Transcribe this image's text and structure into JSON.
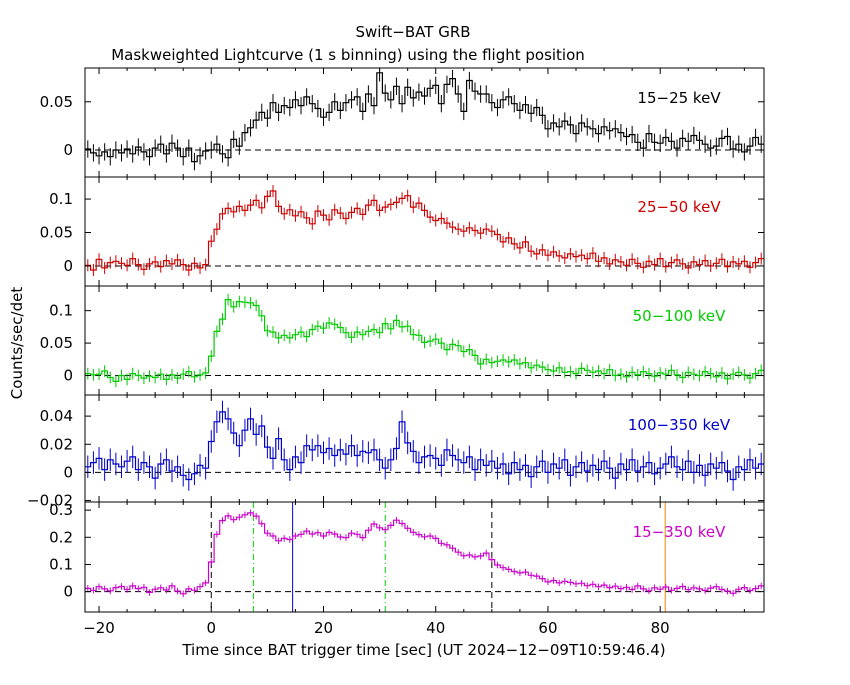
{
  "title": "Swift−BAT GRB",
  "subtitle": "Maskweighted Lightcurve (1 s binning) using the flight position",
  "xlabel": "Time since BAT trigger time [sec] (UT 2024−12−09T10:59:46.4)",
  "ylabel": "Counts/sec/det",
  "x_ticks": [
    "−20",
    "0",
    "20",
    "40",
    "60",
    "80"
  ],
  "colors": {
    "axis": "#000000",
    "black": "#000000",
    "red": "#cc0000",
    "green": "#00cc00",
    "blue": "#0000cc",
    "magenta": "#cc00cc",
    "orange": "#ff8000"
  },
  "chart_data": [
    {
      "type": "line",
      "band": "15−25 keV",
      "color": "#000000",
      "xlim": [
        -22.5,
        98.5
      ],
      "ylim": [
        -0.028,
        0.085
      ],
      "yticks": [
        {
          "v": 0,
          "label": "0"
        },
        {
          "v": 0.05,
          "label": "0.05"
        }
      ],
      "x_start": -22.5,
      "bin_width": 1,
      "values": [
        0.001,
        -0.003,
        -0.006,
        -0.002,
        -0.007,
        0.0,
        -0.003,
        0.001,
        -0.004,
        0.003,
        -0.002,
        -0.007,
        0.002,
        0.006,
        -0.004,
        0.007,
        0.002,
        -0.007,
        0.002,
        -0.012,
        -0.006,
        -0.001,
        0.0,
        0.006,
        -0.004,
        -0.008,
        0.011,
        0.004,
        0.018,
        0.023,
        0.031,
        0.039,
        0.033,
        0.049,
        0.039,
        0.046,
        0.044,
        0.052,
        0.046,
        0.055,
        0.048,
        0.043,
        0.034,
        0.039,
        0.05,
        0.041,
        0.049,
        0.052,
        0.055,
        0.04,
        0.058,
        0.046,
        0.08,
        0.059,
        0.052,
        0.066,
        0.048,
        0.065,
        0.054,
        0.06,
        0.056,
        0.064,
        0.067,
        0.048,
        0.068,
        0.074,
        0.058,
        0.04,
        0.072,
        0.061,
        0.058,
        0.058,
        0.049,
        0.044,
        0.052,
        0.055,
        0.048,
        0.041,
        0.047,
        0.038,
        0.044,
        0.036,
        0.022,
        0.028,
        0.024,
        0.03,
        0.026,
        0.017,
        0.028,
        0.024,
        0.022,
        0.017,
        0.024,
        0.02,
        0.022,
        0.018,
        0.014,
        0.016,
        0.008,
        0.002,
        0.017,
        0.008,
        0.007,
        0.013,
        0.009,
        0.002,
        0.012,
        0.009,
        0.015,
        0.01,
        0.006,
        0.002,
        0.004,
        0.012,
        0.014,
        0.001,
        0.006,
        -0.002,
        0.004,
        0.013,
        0.006
      ],
      "errors": 0.009
    },
    {
      "type": "line",
      "band": "25−50 keV",
      "color": "#cc0000",
      "xlim": [
        -22.5,
        98.5
      ],
      "ylim": [
        -0.03,
        0.133
      ],
      "yticks": [
        {
          "v": 0,
          "label": "0"
        },
        {
          "v": 0.05,
          "label": "0.05"
        },
        {
          "v": 0.1,
          "label": "0.1"
        }
      ],
      "x_start": -22.5,
      "bin_width": 1,
      "values": [
        0.001,
        -0.006,
        0.01,
        -0.003,
        0.005,
        0.007,
        0.004,
        0.001,
        0.011,
        0.002,
        -0.005,
        0.003,
        0.006,
        -0.001,
        0.008,
        0.003,
        0.009,
        0.002,
        -0.006,
        0.004,
        -0.003,
        0.002,
        0.037,
        0.055,
        0.078,
        0.086,
        0.081,
        0.089,
        0.083,
        0.091,
        0.098,
        0.087,
        0.104,
        0.112,
        0.089,
        0.078,
        0.084,
        0.075,
        0.081,
        0.072,
        0.063,
        0.082,
        0.076,
        0.069,
        0.084,
        0.079,
        0.071,
        0.08,
        0.086,
        0.077,
        0.091,
        0.098,
        0.083,
        0.088,
        0.092,
        0.095,
        0.101,
        0.105,
        0.088,
        0.094,
        0.083,
        0.073,
        0.068,
        0.071,
        0.064,
        0.058,
        0.055,
        0.052,
        0.057,
        0.053,
        0.049,
        0.055,
        0.052,
        0.047,
        0.036,
        0.042,
        0.033,
        0.027,
        0.036,
        0.022,
        0.018,
        0.024,
        0.016,
        0.021,
        0.015,
        0.012,
        0.018,
        0.014,
        0.016,
        0.011,
        0.019,
        0.007,
        0.012,
        0.003,
        0.009,
        0.006,
        0.001,
        0.01,
        0.004,
        -0.002,
        0.007,
        0.002,
        0.011,
        -0.001,
        0.005,
        0.009,
        0.003,
        -0.003,
        0.006,
        0.002,
        0.008,
        0.0,
        0.004,
        0.01,
        -0.001,
        0.006,
        0.003,
        0.007,
        -0.002,
        0.005,
        0.011
      ],
      "errors": 0.009
    },
    {
      "type": "line",
      "band": "50−100 keV",
      "color": "#00cc00",
      "xlim": [
        -22.5,
        98.5
      ],
      "ylim": [
        -0.03,
        0.138
      ],
      "yticks": [
        {
          "v": 0,
          "label": "0"
        },
        {
          "v": 0.05,
          "label": "0.05"
        },
        {
          "v": 0.1,
          "label": "0.1"
        }
      ],
      "x_start": -22.5,
      "bin_width": 1,
      "values": [
        0.003,
        0.001,
        0.002,
        0.007,
        -0.003,
        -0.009,
        0.0,
        -0.006,
        0.003,
        0.0,
        -0.004,
        -0.001,
        -0.003,
        0.002,
        -0.006,
        0.001,
        -0.004,
        0.002,
        0.006,
        -0.002,
        0.001,
        0.004,
        0.03,
        0.068,
        0.087,
        0.117,
        0.106,
        0.114,
        0.113,
        0.112,
        0.108,
        0.092,
        0.069,
        0.067,
        0.058,
        0.062,
        0.058,
        0.063,
        0.067,
        0.06,
        0.071,
        0.076,
        0.073,
        0.081,
        0.079,
        0.074,
        0.066,
        0.059,
        0.067,
        0.063,
        0.068,
        0.071,
        0.066,
        0.08,
        0.072,
        0.085,
        0.075,
        0.076,
        0.063,
        0.062,
        0.051,
        0.053,
        0.056,
        0.05,
        0.04,
        0.048,
        0.046,
        0.037,
        0.04,
        0.031,
        0.018,
        0.025,
        0.02,
        0.022,
        0.024,
        0.021,
        0.024,
        0.018,
        0.02,
        0.012,
        0.016,
        0.013,
        0.009,
        0.007,
        0.012,
        0.005,
        0.006,
        0.003,
        0.011,
        0.008,
        0.005,
        0.007,
        0.003,
        0.009,
        0.0,
        0.002,
        -0.002,
        0.005,
        0.001,
        0.006,
        0.003,
        -0.001,
        0.004,
        0.002,
        0.008,
        0.001,
        -0.003,
        0.005,
        0.002,
        0.0,
        0.006,
        0.003,
        -0.002,
        0.004,
        -0.005,
        0.002,
        0.005,
        0.001,
        -0.004,
        0.003,
        0.008
      ],
      "errors": 0.009
    },
    {
      "type": "line",
      "band": "100−350 keV",
      "color": "#0000cc",
      "xlim": [
        -22.5,
        98.5
      ],
      "ylim": [
        -0.021,
        0.055
      ],
      "yticks": [
        {
          "v": -0.02,
          "label": "−0.02"
        },
        {
          "v": 0,
          "label": "0"
        },
        {
          "v": 0.02,
          "label": "0.02"
        },
        {
          "v": 0.04,
          "label": "0.04"
        }
      ],
      "x_start": -22.5,
      "bin_width": 1,
      "values": [
        0.004,
        0.007,
        0.01,
        0.002,
        0.009,
        0.006,
        0.004,
        0.008,
        0.011,
        0.002,
        0.007,
        0.004,
        -0.004,
        0.006,
        0.009,
        0.001,
        0.004,
        -0.002,
        -0.005,
        -0.001,
        0.005,
        0.003,
        0.022,
        0.036,
        0.043,
        0.038,
        0.028,
        0.019,
        0.03,
        0.038,
        0.027,
        0.033,
        0.018,
        0.01,
        0.024,
        0.009,
        0.002,
        0.011,
        0.007,
        0.019,
        0.016,
        0.019,
        0.014,
        0.017,
        0.012,
        0.016,
        0.013,
        0.019,
        0.012,
        0.015,
        0.014,
        0.016,
        0.009,
        0.003,
        0.009,
        0.017,
        0.036,
        0.021,
        0.015,
        0.007,
        0.011,
        0.012,
        0.01,
        0.005,
        0.016,
        0.012,
        0.009,
        0.007,
        0.011,
        0.002,
        0.009,
        0.005,
        0.008,
        0.003,
        0.006,
        -0.001,
        0.007,
        0.002,
        0.005,
        -0.003,
        0.004,
        0.008,
        0.0,
        0.006,
        0.003,
        0.009,
        -0.002,
        0.004,
        0.007,
        0.001,
        0.005,
        0.002,
        0.008,
        0.003,
        -0.004,
        0.006,
        0.002,
        0.009,
        0.001,
        0.004,
        0.007,
        -0.001,
        0.003,
        0.006,
        0.011,
        0.004,
        0.002,
        0.008,
        0.0,
        0.005,
        -0.002,
        0.006,
        0.003,
        0.007,
        0.001,
        -0.005,
        0.004,
        0.002,
        0.009,
        0.003,
        0.006
      ],
      "errors": 0.008
    },
    {
      "type": "line",
      "band": "15−350 keV",
      "color": "#cc00cc",
      "xlim": [
        -22.5,
        98.5
      ],
      "ylim": [
        -0.075,
        0.33
      ],
      "yticks": [
        {
          "v": 0,
          "label": "0"
        },
        {
          "v": 0.1,
          "label": "0.1"
        },
        {
          "v": 0.2,
          "label": "0.2"
        },
        {
          "v": 0.3,
          "label": "0.3"
        }
      ],
      "x_start": -22.5,
      "bin_width": 1,
      "values": [
        0.012,
        0.005,
        0.018,
        0.01,
        0.003,
        0.015,
        0.019,
        0.008,
        0.021,
        0.011,
        0.016,
        -0.003,
        0.009,
        0.014,
        0.006,
        0.021,
        0.002,
        -0.008,
        0.01,
        0.005,
        0.018,
        0.032,
        0.109,
        0.211,
        0.262,
        0.279,
        0.265,
        0.274,
        0.283,
        0.29,
        0.278,
        0.25,
        0.215,
        0.205,
        0.187,
        0.196,
        0.192,
        0.205,
        0.211,
        0.223,
        0.212,
        0.217,
        0.205,
        0.218,
        0.212,
        0.201,
        0.199,
        0.215,
        0.211,
        0.199,
        0.226,
        0.249,
        0.235,
        0.228,
        0.244,
        0.263,
        0.251,
        0.233,
        0.218,
        0.21,
        0.202,
        0.205,
        0.196,
        0.178,
        0.172,
        0.16,
        0.145,
        0.132,
        0.135,
        0.128,
        0.131,
        0.142,
        0.118,
        0.098,
        0.088,
        0.082,
        0.074,
        0.069,
        0.072,
        0.06,
        0.057,
        0.048,
        0.036,
        0.041,
        0.032,
        0.038,
        0.034,
        0.029,
        0.031,
        0.022,
        0.027,
        0.018,
        0.024,
        0.015,
        0.02,
        0.011,
        0.016,
        0.008,
        0.021,
        0.01,
        0.003,
        0.014,
        0.009,
        0.017,
        0.005,
        0.012,
        0.019,
        0.007,
        0.014,
        0.01,
        0.004,
        0.013,
        0.018,
        0.008,
        0.002,
        -0.006,
        0.009,
        0.015,
        0.004,
        0.011,
        0.021
      ],
      "errors": 0.012,
      "markers": [
        {
          "x": 0,
          "style": "dash",
          "color": "#000000"
        },
        {
          "x": 7.5,
          "style": "dashdot",
          "color": "#00cc00"
        },
        {
          "x": 14.5,
          "style": "solid",
          "color": "#0000cc"
        },
        {
          "x": 31,
          "style": "dashdot",
          "color": "#00cc00"
        },
        {
          "x": 50,
          "style": "dash",
          "color": "#000000"
        },
        {
          "x": 80.9,
          "style": "solid",
          "color": "#ff8000"
        }
      ]
    }
  ]
}
